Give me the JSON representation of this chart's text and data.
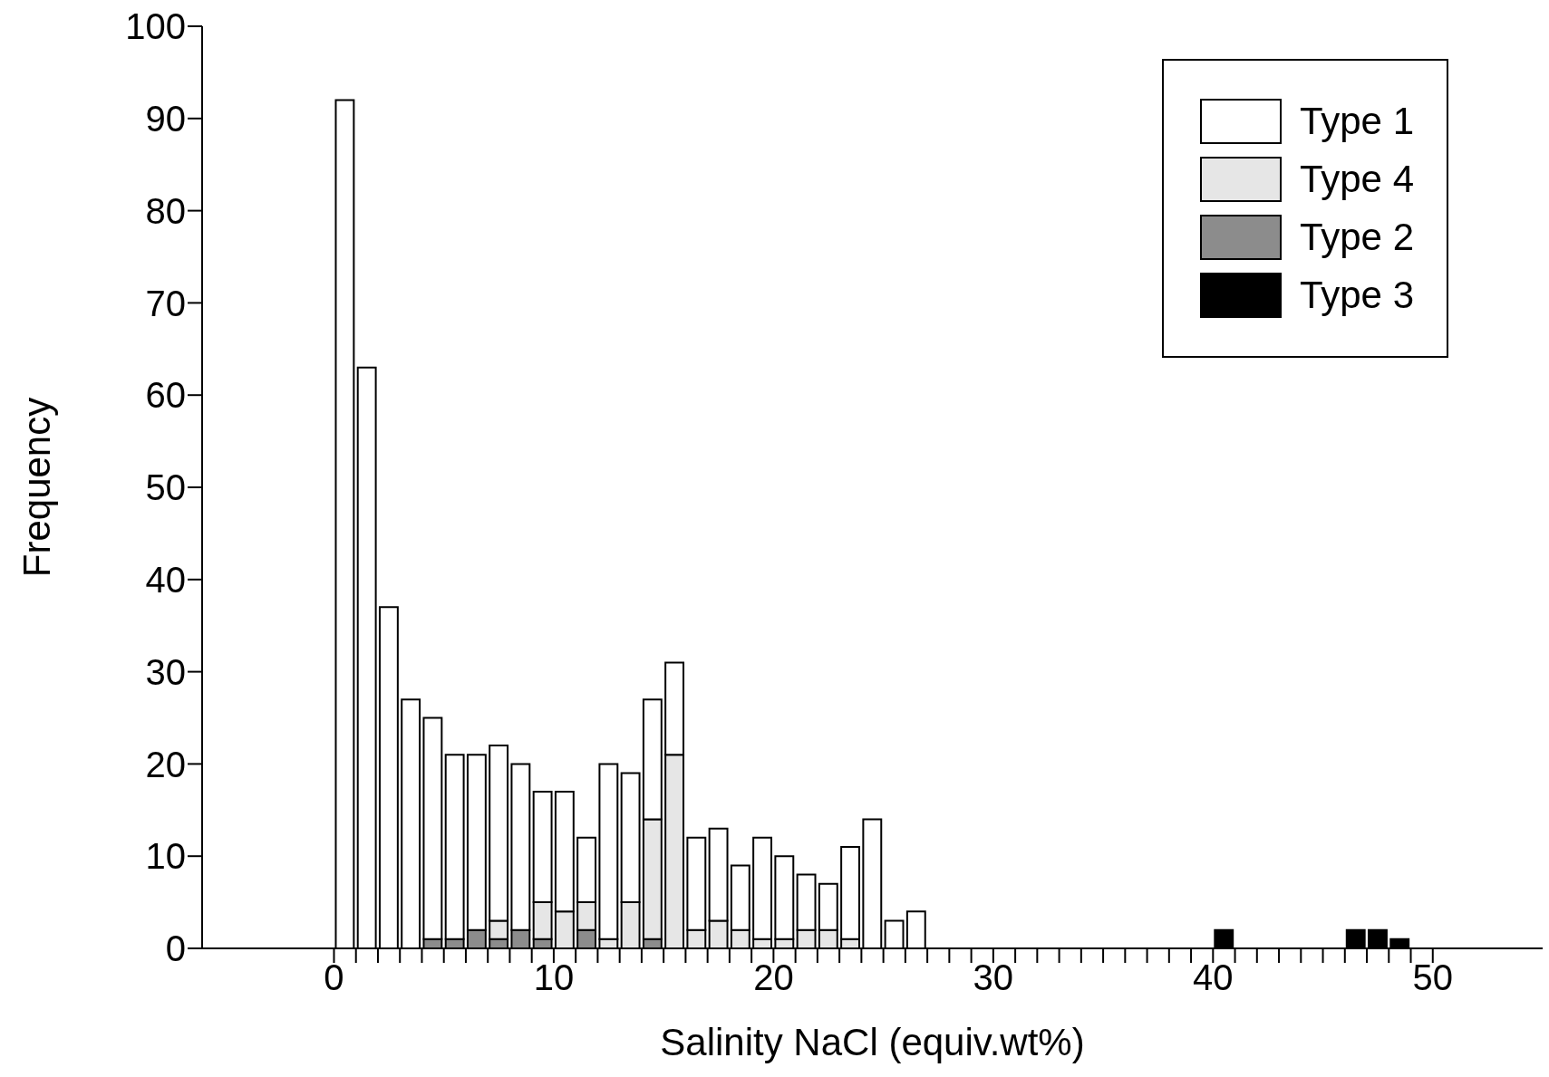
{
  "chart_data": {
    "type": "bar",
    "stacked": true,
    "xlabel": "Salinity NaCl (equiv.wt%)",
    "ylabel": "Frequency",
    "x": [
      0.5,
      1.5,
      2.5,
      3.5,
      4.5,
      5.5,
      6.5,
      7.5,
      8.5,
      9.5,
      10.5,
      11.5,
      12.5,
      13.5,
      14.5,
      15.5,
      16.5,
      17.5,
      18.5,
      19.5,
      20.5,
      21.5,
      22.5,
      23.5,
      24.5,
      25.5,
      26.5,
      40.5,
      46.5,
      47.5,
      48.5
    ],
    "series": [
      {
        "name": "Type 3",
        "color": "#000000",
        "values": [
          null,
          null,
          null,
          null,
          null,
          null,
          null,
          null,
          null,
          null,
          null,
          null,
          null,
          null,
          null,
          null,
          null,
          null,
          null,
          null,
          null,
          null,
          null,
          null,
          null,
          null,
          null,
          2,
          2,
          2,
          1
        ]
      },
      {
        "name": "Type 2",
        "color": "#8c8c8c",
        "values": [
          null,
          null,
          null,
          null,
          1,
          1,
          2,
          1,
          2,
          1,
          null,
          2,
          null,
          null,
          1,
          null,
          null,
          null,
          null,
          null,
          null,
          null,
          null,
          null,
          null,
          null,
          null,
          null,
          null,
          null,
          null
        ]
      },
      {
        "name": "Type 4",
        "color": "#e6e6e6",
        "values": [
          null,
          null,
          null,
          null,
          null,
          null,
          null,
          2,
          null,
          4,
          4,
          3,
          1,
          5,
          13,
          21,
          2,
          3,
          2,
          1,
          1,
          2,
          2,
          1,
          null,
          null,
          null,
          null,
          null,
          null,
          null
        ]
      },
      {
        "name": "Type 1",
        "color": "#ffffff",
        "values": [
          92,
          63,
          37,
          27,
          24,
          20,
          19,
          19,
          18,
          12,
          13,
          7,
          19,
          14,
          13,
          10,
          10,
          10,
          7,
          11,
          9,
          6,
          5,
          10,
          14,
          3,
          4,
          null,
          null,
          null,
          null
        ]
      }
    ],
    "xlim": [
      -6,
      55
    ],
    "xticks": [
      0,
      {
        "value": 1,
        "label": null
      },
      {
        "value": 2,
        "label": null
      },
      {
        "value": 3,
        "label": null
      },
      {
        "value": 4,
        "label": null
      },
      {
        "value": 5,
        "label": null
      },
      {
        "value": 6,
        "label": null
      },
      {
        "value": 7,
        "label": null
      },
      {
        "value": 8,
        "label": null
      },
      {
        "value": 9,
        "label": null
      },
      10,
      {
        "value": 11,
        "label": null
      },
      {
        "value": 12,
        "label": null
      },
      {
        "value": 13,
        "label": null
      },
      {
        "value": 14,
        "label": null
      },
      {
        "value": 15,
        "label": null
      },
      {
        "value": 16,
        "label": null
      },
      {
        "value": 17,
        "label": null
      },
      {
        "value": 18,
        "label": null
      },
      {
        "value": 19,
        "label": null
      },
      20,
      {
        "value": 21,
        "label": null
      },
      {
        "value": 22,
        "label": null
      },
      {
        "value": 23,
        "label": null
      },
      {
        "value": 24,
        "label": null
      },
      {
        "value": 25,
        "label": null
      },
      {
        "value": 26,
        "label": null
      },
      {
        "value": 27,
        "label": null
      },
      {
        "value": 28,
        "label": null
      },
      {
        "value": 29,
        "label": null
      },
      30,
      {
        "value": 31,
        "label": null
      },
      {
        "value": 32,
        "label": null
      },
      {
        "value": 33,
        "label": null
      },
      {
        "value": 34,
        "label": null
      },
      {
        "value": 35,
        "label": null
      },
      {
        "value": 36,
        "label": null
      },
      {
        "value": 37,
        "label": null
      },
      {
        "value": 38,
        "label": null
      },
      {
        "value": 39,
        "label": null
      },
      40,
      {
        "value": 41,
        "label": null
      },
      {
        "value": 42,
        "label": null
      },
      {
        "value": 43,
        "label": null
      },
      {
        "value": 44,
        "label": null
      },
      {
        "value": 45,
        "label": null
      },
      {
        "value": 46,
        "label": null
      },
      {
        "value": 47,
        "label": null
      },
      {
        "value": 48,
        "label": null
      },
      {
        "value": 49,
        "label": null
      },
      50
    ],
    "ylim": [
      0,
      100
    ],
    "yticks": [
      0,
      10,
      20,
      30,
      40,
      50,
      60,
      70,
      80,
      90,
      100
    ],
    "grid": false,
    "legend": "top right"
  }
}
